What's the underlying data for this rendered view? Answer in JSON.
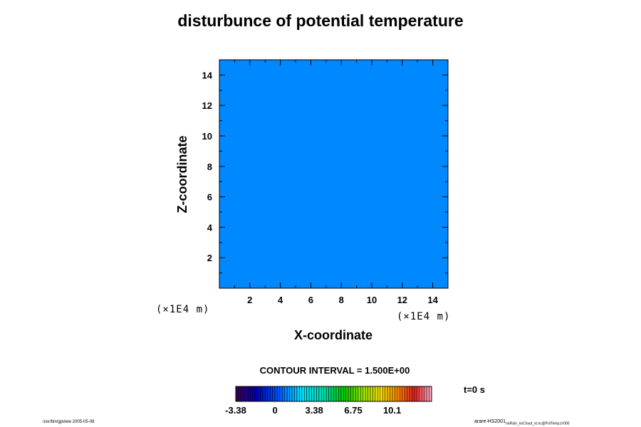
{
  "chart_data": {
    "type": "heatmap",
    "title": "disturbunce of potential temperature",
    "xlabel": "X-coordinate",
    "ylabel": "Z-coordinate",
    "x_unit": "(×1E4 m)",
    "y_unit": "(×1E4 m)",
    "xlim": [
      0,
      15
    ],
    "ylim": [
      0,
      15
    ],
    "x_ticks": [
      2,
      4,
      6,
      8,
      10,
      12,
      14
    ],
    "y_ticks": [
      2,
      4,
      6,
      8,
      10,
      12,
      14
    ],
    "field_value": 0,
    "field_color": "#0088ff",
    "contour_interval": "CONTOUR INTERVAL = 1.500E+00",
    "time": "t=0 s",
    "colorbar": {
      "min": -3.38,
      "max": 13.5,
      "tick_labels": [
        "-3.38",
        "0",
        "3.38",
        "6.75",
        "10.1"
      ],
      "tick_values": [
        -3.38,
        0,
        3.38,
        6.75,
        10.1
      ]
    }
  },
  "footer": {
    "left": "/usr/bin/gpview 2005-05-08",
    "right_main": "arare-HS2001",
    "right_sub": "noRain_noCloud_xt.nc@PotTemp,t=000"
  }
}
